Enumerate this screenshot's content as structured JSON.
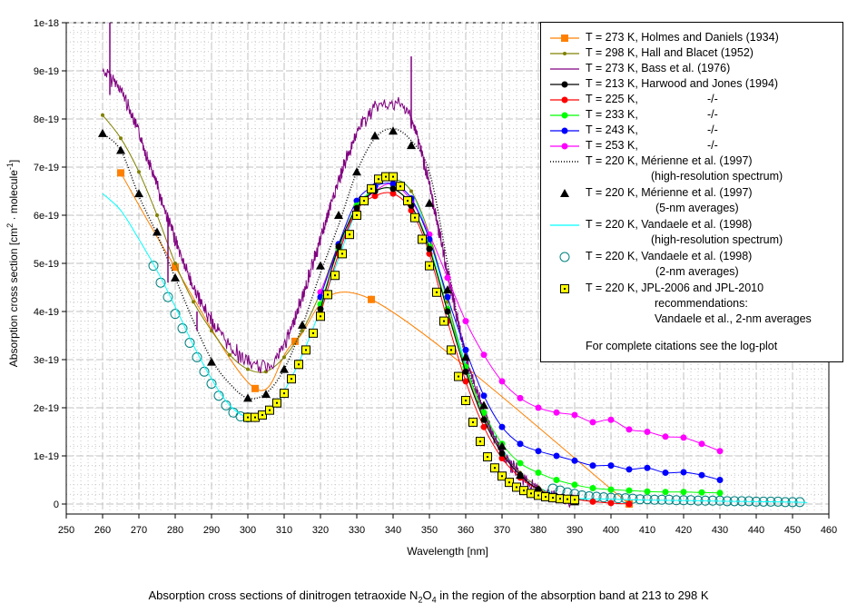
{
  "chart_data": {
    "type": "line",
    "title": "Absorption cross sections of dinitrogen tetraoxide N2O4 in the region of the absorption band at 213 to 298 K",
    "caption": {
      "prefix": "Absorption cross sections of dinitrogen tetraoxide N",
      "sub1": "2",
      "mid": "O",
      "sub2": "4",
      "suffix": " in the region of the absorption band at 213 to 298 K"
    },
    "xlabel": "Wavelength [nm]",
    "ylabel_parts": {
      "a": "Absorption cross section [cm",
      "sup1": "2",
      "b": " · molecule",
      "sup2": "-1",
      "c": "]"
    },
    "xlim": [
      250,
      460
    ],
    "ylim": [
      0,
      1e-18
    ],
    "xticks": [
      "250",
      "260",
      "270",
      "280",
      "290",
      "300",
      "310",
      "320",
      "330",
      "340",
      "350",
      "360",
      "370",
      "380",
      "390",
      "400",
      "410",
      "420",
      "430",
      "440",
      "450",
      "460"
    ],
    "yticks": [
      "0",
      "1e-19",
      "2e-19",
      "3e-19",
      "4e-19",
      "5e-19",
      "6e-19",
      "7e-19",
      "8e-19",
      "9e-19",
      "1e-18"
    ],
    "grid": true,
    "legend_position": "top-right",
    "series": [
      {
        "name": "T = 273 K, Holmes and Daniels (1934)",
        "color": "#ff8000",
        "marker": "square",
        "line": "solid",
        "x": [
          265,
          280,
          302,
          313,
          334,
          405
        ],
        "y": [
          6.88e-19,
          4.92e-19,
          2.4e-19,
          3.38e-19,
          4.25e-19,
          0.0
        ]
      },
      {
        "name": "T = 298 K, Hall and Blacet (1952)",
        "color": "#808000",
        "marker": "small-dot",
        "line": "solid",
        "x": [
          260,
          265,
          270,
          275,
          280,
          285,
          290,
          295,
          300,
          305,
          310,
          315,
          320,
          325,
          330,
          335,
          340,
          345,
          350,
          355,
          360,
          365,
          370,
          375,
          380,
          385,
          390
        ],
        "y": [
          8.08e-19,
          7.6e-19,
          6.9e-19,
          6e-19,
          5e-19,
          4.2e-19,
          3.6e-19,
          3.1e-19,
          2.8e-19,
          2.75e-19,
          3.05e-19,
          3.6e-19,
          4.4e-19,
          5.4e-19,
          6.1e-19,
          6.6e-19,
          6.75e-19,
          6.5e-19,
          5.6e-19,
          4.2e-19,
          2.8e-19,
          1.8e-19,
          1.1e-19,
          6.5e-20,
          3.5e-20,
          1.5e-20,
          5e-21
        ]
      },
      {
        "name": "T = 273 K, Bass et al. (1976)",
        "color": "#800080",
        "marker": "none",
        "line": "noisy",
        "x": [
          260,
          265,
          270,
          275,
          280,
          285,
          290,
          295,
          300,
          305,
          310,
          315,
          320,
          325,
          330,
          335,
          340,
          345,
          350,
          355,
          360,
          365,
          370,
          375,
          380,
          385,
          390
        ],
        "y": [
          9e-19,
          8.6e-19,
          7.7e-19,
          6.6e-19,
          5.5e-19,
          4.5e-19,
          3.8e-19,
          3.3e-19,
          2.95e-19,
          2.85e-19,
          3.3e-19,
          4.3e-19,
          5.5e-19,
          6.7e-19,
          7.7e-19,
          8.2e-19,
          8.3e-19,
          8e-19,
          6.6e-19,
          4.8e-19,
          3.1e-19,
          1.9e-19,
          1.1e-19,
          6e-20,
          3e-20,
          1.5e-20,
          5e-21
        ]
      },
      {
        "name": "T = 213 K, Harwood and Jones (1994)",
        "color": "#000000",
        "marker": "dot",
        "line": "solid",
        "x": [
          320,
          325,
          330,
          335,
          340,
          345,
          350,
          355,
          360,
          365,
          370,
          375,
          380,
          385,
          390
        ],
        "y": [
          4.05e-19,
          5.35e-19,
          6.15e-19,
          6.5e-19,
          6.55e-19,
          6.2e-19,
          5.3e-19,
          4e-19,
          2.75e-19,
          1.75e-19,
          1.05e-19,
          6e-20,
          3e-20,
          1.5e-20,
          5e-21
        ]
      },
      {
        "name": "T = 225 K, -/-",
        "color": "#ff0000",
        "marker": "dot",
        "line": "solid",
        "x": [
          320,
          325,
          330,
          335,
          340,
          345,
          350,
          355,
          360,
          365,
          370,
          375,
          380,
          385,
          390,
          395,
          400,
          405
        ],
        "y": [
          3.95e-19,
          5.2e-19,
          6.1e-19,
          6.4e-19,
          6.45e-19,
          6.1e-19,
          5.2e-19,
          3.8e-19,
          2.55e-19,
          1.6e-19,
          9.5e-20,
          5.5e-20,
          3e-20,
          1.5e-20,
          1e-20,
          5e-21,
          2e-21,
          0.0
        ]
      },
      {
        "name": "T = 233 K, -/-",
        "color": "#00ff00",
        "marker": "dot",
        "line": "solid",
        "x": [
          320,
          325,
          330,
          335,
          340,
          345,
          350,
          355,
          360,
          365,
          370,
          375,
          380,
          385,
          390,
          395,
          400,
          405,
          410,
          415,
          420,
          425,
          430
        ],
        "y": [
          4.15e-19,
          5.3e-19,
          6.2e-19,
          6.5e-19,
          6.55e-19,
          6.2e-19,
          5.35e-19,
          4.05e-19,
          2.85e-19,
          1.9e-19,
          1.25e-19,
          8.5e-20,
          6.5e-20,
          5e-20,
          4e-20,
          3.3e-20,
          3e-20,
          2.8e-20,
          2.6e-20,
          2.5e-20,
          2.5e-20,
          2.4e-20,
          2.3e-20
        ]
      },
      {
        "name": "T = 243 K, -/-",
        "color": "#0000ff",
        "marker": "dot",
        "line": "solid",
        "x": [
          320,
          325,
          330,
          335,
          340,
          345,
          350,
          355,
          360,
          365,
          370,
          375,
          380,
          385,
          390,
          395,
          400,
          405,
          410,
          415,
          420,
          425,
          430
        ],
        "y": [
          4.3e-19,
          5.4e-19,
          6.3e-19,
          6.6e-19,
          6.65e-19,
          6.35e-19,
          5.5e-19,
          4.3e-19,
          3.2e-19,
          2.25e-19,
          1.6e-19,
          1.25e-19,
          1.1e-19,
          1e-19,
          9e-20,
          8e-20,
          8e-20,
          7.2e-20,
          7.5e-20,
          6.5e-20,
          6.6e-20,
          6e-20,
          5e-20
        ]
      },
      {
        "name": "T = 253 K, -/-",
        "color": "#ff00ff",
        "marker": "dot",
        "line": "solid",
        "x": [
          320,
          325,
          330,
          335,
          340,
          345,
          350,
          355,
          360,
          365,
          370,
          375,
          380,
          385,
          390,
          395,
          400,
          405,
          410,
          415,
          420,
          425,
          430
        ],
        "y": [
          4.4e-19,
          5.3e-19,
          6.1e-19,
          6.5e-19,
          6.65e-19,
          6.3e-19,
          5.6e-19,
          4.7e-19,
          3.8e-19,
          3.1e-19,
          2.55e-19,
          2.2e-19,
          2e-19,
          1.9e-19,
          1.85e-19,
          1.7e-19,
          1.75e-19,
          1.55e-19,
          1.5e-19,
          1.4e-19,
          1.38e-19,
          1.25e-19,
          1.1e-19
        ]
      },
      {
        "name": "T = 220 K, Mérienne et al. (1997) (high-resolution spectrum)",
        "color": "#000000",
        "marker": "none",
        "line": "dotted",
        "x": [
          260,
          265,
          270,
          275,
          280,
          285,
          290,
          295,
          300,
          305,
          310,
          315,
          320,
          325,
          330,
          335,
          340,
          345,
          350,
          355,
          360,
          365,
          370,
          375,
          380,
          385,
          390
        ],
        "y": [
          7.7e-19,
          7.35e-19,
          6.4e-19,
          5.6e-19,
          4.7e-19,
          3.8e-19,
          3e-19,
          2.5e-19,
          2.2e-19,
          2.3e-19,
          2.8e-19,
          3.7e-19,
          4.8e-19,
          5.8e-19,
          6.9e-19,
          7.6e-19,
          7.8e-19,
          7.55e-19,
          6.9e-19,
          5e-19,
          3e-19,
          1.9e-19,
          1.1e-19,
          6e-20,
          3e-20,
          1.5e-20,
          5e-21
        ]
      },
      {
        "name": "T = 220 K, Mérienne et al. (1997) (5-nm averages)",
        "color": "#000000",
        "marker": "triangle",
        "line": "none",
        "x": [
          260,
          265,
          270,
          275,
          280,
          290,
          300,
          305,
          310,
          315,
          320,
          325,
          330,
          335,
          340,
          345,
          350,
          355,
          360,
          365,
          370,
          375,
          380,
          385,
          390
        ],
        "y": [
          7.7e-19,
          7.35e-19,
          6.45e-19,
          5.65e-19,
          4.7e-19,
          2.95e-19,
          2.2e-19,
          2.28e-19,
          2.8e-19,
          3.72e-19,
          4.95e-19,
          6e-19,
          6.9e-19,
          7.65e-19,
          7.75e-19,
          7.45e-19,
          6.25e-19,
          4.45e-19,
          3.05e-19,
          2.05e-19,
          1.2e-19,
          6e-20,
          3e-20,
          1.5e-20,
          5e-21
        ]
      },
      {
        "name": "T = 220 K, Vandaele et al. (1998) (high-resolution spectrum)",
        "color": "#00ffff",
        "marker": "none",
        "line": "solid",
        "x": [
          260,
          265,
          270,
          275,
          280,
          285,
          290,
          295,
          300,
          305,
          310,
          315,
          320,
          325,
          330,
          335,
          340,
          345,
          350,
          355,
          360,
          365,
          370,
          375,
          380,
          385,
          390,
          400,
          410,
          420,
          430,
          440,
          450,
          454
        ],
        "y": [
          6.45e-19,
          6.1e-19,
          5.5e-19,
          4.85e-19,
          4.1e-19,
          3.3e-19,
          2.6e-19,
          2.05e-19,
          1.8e-19,
          1.85e-19,
          2.35e-19,
          3.1e-19,
          4.05e-19,
          5.1e-19,
          6.1e-19,
          6.6e-19,
          6.75e-19,
          6.5e-19,
          5.5e-19,
          4.2e-19,
          2.9e-19,
          1.85e-19,
          1.15e-19,
          6.5e-20,
          3.5e-20,
          2e-20,
          1.2e-20,
          1e-20,
          8e-21,
          7e-21,
          6e-21,
          5e-21,
          4e-21,
          3e-21
        ]
      },
      {
        "name": "T = 220 K, Vandaele et al. (1998) (2-nm averages)",
        "color": "#008080",
        "marker": "open-circle",
        "line": "none",
        "x": [
          274,
          276,
          278,
          280,
          282,
          284,
          286,
          288,
          290,
          292,
          294,
          296,
          298,
          300,
          384,
          386,
          388,
          390,
          392,
          394,
          396,
          398,
          400,
          402,
          404,
          406,
          408,
          410,
          412,
          414,
          416,
          418,
          420,
          422,
          424,
          426,
          428,
          430,
          432,
          434,
          436,
          438,
          440,
          442,
          444,
          446,
          448,
          450,
          452
        ],
        "y": [
          4.95e-19,
          4.6e-19,
          4.3e-19,
          3.95e-19,
          3.65e-19,
          3.35e-19,
          3.05e-19,
          2.75e-19,
          2.5e-19,
          2.25e-19,
          2.05e-19,
          1.9e-19,
          1.82e-19,
          1.8e-19,
          3.2e-20,
          2.8e-20,
          2.4e-20,
          2.1e-20,
          1.8e-20,
          1.6e-20,
          1.5e-20,
          1.4e-20,
          1.3e-20,
          1.2e-20,
          1.2e-20,
          1.1e-20,
          1e-20,
          1e-20,
          9e-21,
          9e-21,
          9e-21,
          8e-21,
          8e-21,
          8e-21,
          7e-21,
          7e-21,
          7e-21,
          7e-21,
          6e-21,
          6e-21,
          6e-21,
          6e-21,
          5e-21,
          5e-21,
          5e-21,
          5e-21,
          4e-21,
          4e-21,
          4e-21
        ]
      },
      {
        "name": "T = 220 K, JPL-2006 and JPL-2010 recommendations: Vandaele et al., 2-nm averages",
        "color": "#ffff00",
        "marker": "square-dot",
        "line": "none",
        "x": [
          300,
          302,
          304,
          306,
          308,
          310,
          312,
          314,
          316,
          318,
          320,
          322,
          324,
          326,
          328,
          330,
          332,
          334,
          336,
          338,
          340,
          342,
          344,
          346,
          348,
          350,
          352,
          354,
          356,
          358,
          360,
          362,
          364,
          366,
          368,
          370,
          372,
          374,
          376,
          378,
          380,
          382,
          384,
          386,
          388,
          390
        ],
        "y": [
          1.8e-19,
          1.8e-19,
          1.85e-19,
          1.95e-19,
          2.1e-19,
          2.3e-19,
          2.6e-19,
          2.9e-19,
          3.2e-19,
          3.55e-19,
          3.9e-19,
          4.35e-19,
          4.75e-19,
          5.2e-19,
          5.6e-19,
          6e-19,
          6.3e-19,
          6.55e-19,
          6.75e-19,
          6.8e-19,
          6.8e-19,
          6.6e-19,
          6.3e-19,
          5.95e-19,
          5.5e-19,
          4.95e-19,
          4.4e-19,
          3.8e-19,
          3.2e-19,
          2.65e-19,
          2.15e-19,
          1.7e-19,
          1.3e-19,
          9.8e-20,
          7.5e-20,
          5.8e-20,
          4.5e-20,
          3.5e-20,
          2.8e-20,
          2.2e-20,
          1.8e-20,
          1.5e-20,
          1.3e-20,
          1.1e-20,
          1e-20,
          9e-21
        ]
      }
    ]
  },
  "legend": {
    "entries": [
      {
        "label": "T = 273 K, Holmes and Daniels (1934)",
        "sub": []
      },
      {
        "label": "T = 298 K, Hall and Blacet (1952)",
        "sub": []
      },
      {
        "label": "T = 273 K, Bass et al. (1976)",
        "sub": []
      },
      {
        "label": "T = 213 K, Harwood and Jones (1994)",
        "sub": []
      },
      {
        "label": "T = 225 K,",
        "ditto": "-/-",
        "sub": []
      },
      {
        "label": "T = 233 K,",
        "ditto": "-/-",
        "sub": []
      },
      {
        "label": "T = 243 K,",
        "ditto": "-/-",
        "sub": []
      },
      {
        "label": "T = 253 K,",
        "ditto": "-/-",
        "sub": []
      },
      {
        "label": "T = 220 K, Mérienne et al. (1997)",
        "sub": [
          "(high-resolution spectrum)"
        ]
      },
      {
        "label": "T = 220 K, Mérienne et al. (1997)",
        "sub": [
          "(5-nm averages)"
        ]
      },
      {
        "label": "T = 220 K, Vandaele et al. (1998)",
        "sub": [
          "(high-resolution spectrum)"
        ]
      },
      {
        "label": "T = 220 K, Vandaele et al. (1998)",
        "sub": [
          "(2-nm averages)"
        ]
      },
      {
        "label": "T = 220 K, JPL-2006 and JPL-2010",
        "sub": [
          "recommendations:",
          "Vandaele et al., 2-nm averages"
        ]
      }
    ],
    "note": "For complete citations see the log-plot"
  }
}
